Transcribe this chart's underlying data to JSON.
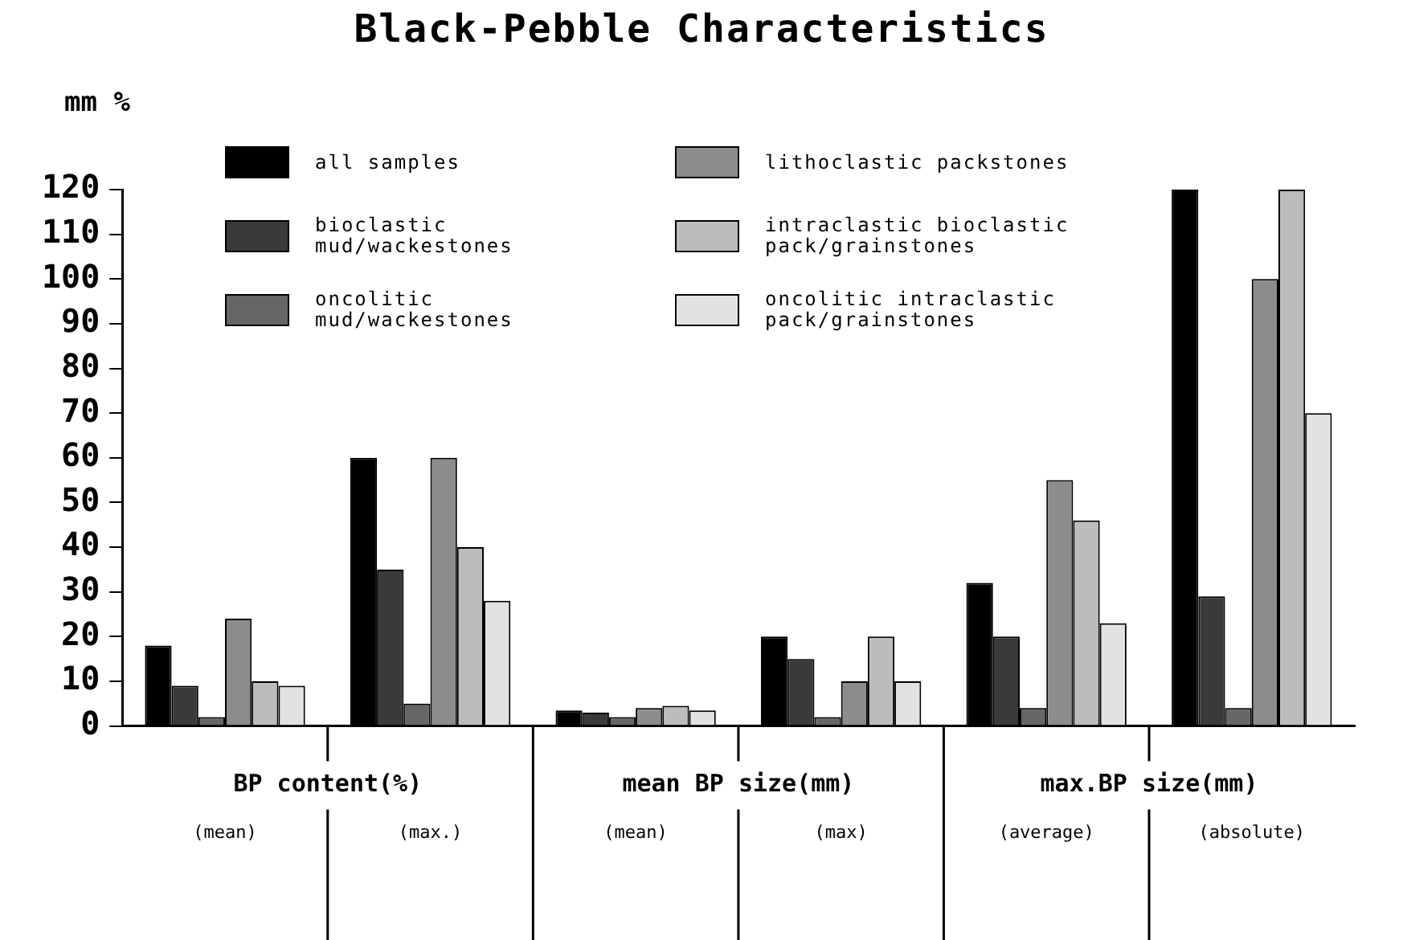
{
  "chart_data": {
    "type": "bar",
    "title": "Black-Pebble Characteristics",
    "ylabel": "mm %",
    "categories": [
      "(mean)",
      "(max.)",
      "(mean)",
      "(max)",
      "(average)",
      "(absolute)"
    ],
    "annotations": [
      "BP content(%)",
      "mean BP size(mm)",
      "max.BP size(mm)"
    ],
    "series": [
      {
        "name": "all samples",
        "color": "#000000",
        "values": [
          18,
          60,
          3.5,
          20,
          32,
          120
        ]
      },
      {
        "name": "bioclastic mud/wackestones",
        "color": "#3a3a3a",
        "values": [
          9,
          35,
          3,
          15,
          20,
          29
        ]
      },
      {
        "name": "oncolitic mud/wackestones",
        "color": "#666666",
        "values": [
          2,
          5,
          2,
          2,
          4,
          4
        ]
      },
      {
        "name": "lithoclastic packstones",
        "color": "#8c8c8c",
        "values": [
          24,
          60,
          4,
          10,
          55,
          100
        ]
      },
      {
        "name": "intraclastic bioclastic pack/grainstones",
        "color": "#bcbcbc",
        "values": [
          10,
          40,
          4.5,
          20,
          46,
          120
        ]
      },
      {
        "name": "oncolitic intraclastic pack/grainstones",
        "color": "#e2e2e2",
        "values": [
          9,
          28,
          3.5,
          10,
          23,
          70
        ]
      }
    ],
    "ylim": [
      0,
      120
    ],
    "yticks": [
      0,
      10,
      20,
      30,
      40,
      50,
      60,
      70,
      80,
      90,
      100,
      110,
      120
    ],
    "grid": false,
    "legend": "top left"
  }
}
